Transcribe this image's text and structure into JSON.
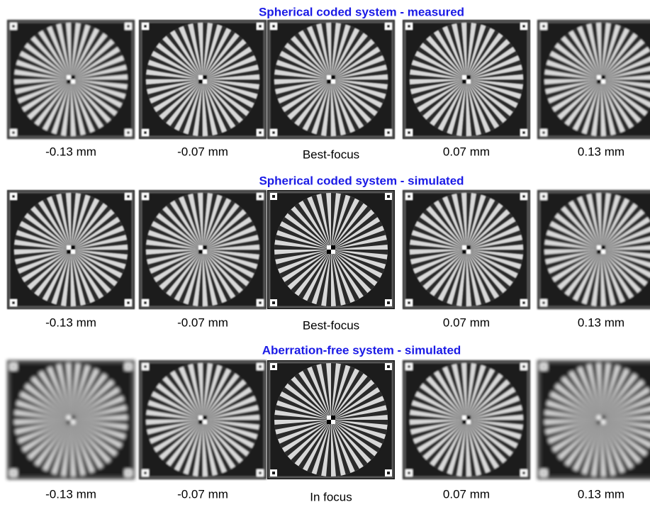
{
  "sections": [
    {
      "title": "Spherical coded system - measured",
      "labels": [
        "-0.13 mm",
        "-0.07 mm",
        "Best-focus",
        "0.07 mm",
        "0.13 mm"
      ]
    },
    {
      "title": "Spherical coded system - simulated",
      "labels": [
        "-0.13 mm",
        "-0.07 mm",
        "Best-focus",
        "0.07 mm",
        "0.13 mm"
      ]
    },
    {
      "title": "Aberration-free system - simulated",
      "labels": [
        "-0.13 mm",
        "-0.07 mm",
        "In focus",
        "0.07 mm",
        "0.13 mm"
      ]
    }
  ]
}
